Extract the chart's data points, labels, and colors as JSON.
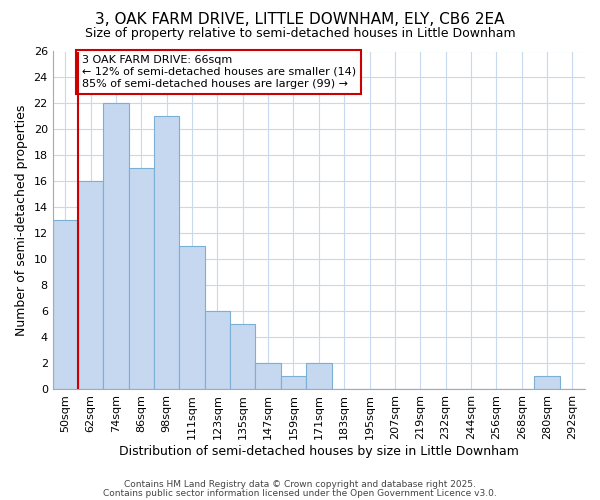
{
  "title": "3, OAK FARM DRIVE, LITTLE DOWNHAM, ELY, CB6 2EA",
  "subtitle": "Size of property relative to semi-detached houses in Little Downham",
  "xlabel": "Distribution of semi-detached houses by size in Little Downham",
  "ylabel": "Number of semi-detached properties",
  "bins": [
    "50sqm",
    "62sqm",
    "74sqm",
    "86sqm",
    "98sqm",
    "111sqm",
    "123sqm",
    "135sqm",
    "147sqm",
    "159sqm",
    "171sqm",
    "183sqm",
    "195sqm",
    "207sqm",
    "219sqm",
    "232sqm",
    "244sqm",
    "256sqm",
    "268sqm",
    "280sqm",
    "292sqm"
  ],
  "counts": [
    13,
    16,
    22,
    17,
    21,
    11,
    6,
    5,
    2,
    1,
    2,
    0,
    0,
    0,
    0,
    0,
    0,
    0,
    0,
    1,
    0
  ],
  "bar_color": "#c5d8f0",
  "bar_edge_color": "#7bafd4",
  "vline_color": "#cc0000",
  "vline_bin_index": 1,
  "annotation_text": "3 OAK FARM DRIVE: 66sqm\n← 12% of semi-detached houses are smaller (14)\n85% of semi-detached houses are larger (99) →",
  "annotation_box_color": "white",
  "annotation_box_edge": "#cc0000",
  "ylim": [
    0,
    26
  ],
  "yticks": [
    0,
    2,
    4,
    6,
    8,
    10,
    12,
    14,
    16,
    18,
    20,
    22,
    24,
    26
  ],
  "background_color": "#ffffff",
  "plot_bg_color": "#ffffff",
  "grid_color": "#c8d8ee",
  "footer1": "Contains HM Land Registry data © Crown copyright and database right 2025.",
  "footer2": "Contains public sector information licensed under the Open Government Licence v3.0.",
  "title_fontsize": 11,
  "subtitle_fontsize": 9,
  "axis_label_fontsize": 9,
  "tick_fontsize": 8,
  "annotation_fontsize": 8
}
